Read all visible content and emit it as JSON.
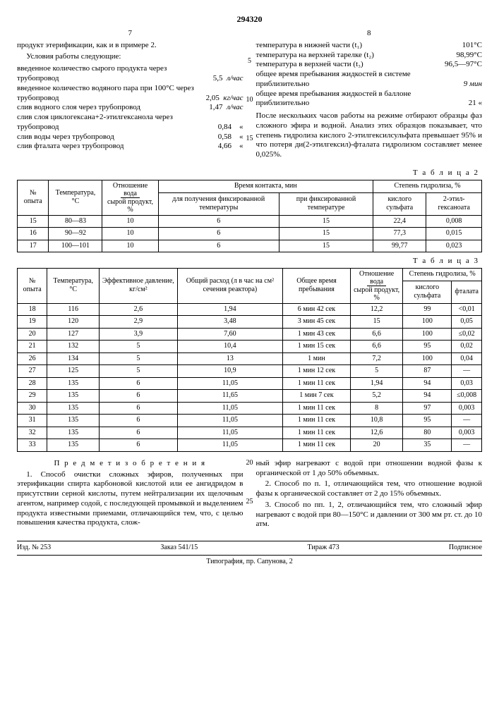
{
  "patent_number": "294320",
  "page_left_num": "7",
  "page_right_num": "8",
  "left_col": {
    "intro1": "продукт этерификации, как и в примере 2.",
    "intro2": "Условия работы следующие:",
    "kv": [
      {
        "k": "введенное количество сырого продукта через трубопровод",
        "v": "5,5",
        "u": "л/час"
      },
      {
        "k": "введенное количество водяного пара при 100°C через трубопровод",
        "v": "2,05",
        "u": "кг/час"
      },
      {
        "k": "слив водного слоя через трубопровод",
        "v": "1,47",
        "u": "л/час"
      },
      {
        "k": "слив слоя циклогексана+2-этилгексанола через трубопровод",
        "v": "0,84",
        "u": "«"
      },
      {
        "k": "слив воды через трубопровод",
        "v": "0,58",
        "u": "«"
      },
      {
        "k": "слив фталата через трубопровод",
        "v": "4,66",
        "u": "«"
      }
    ]
  },
  "right_col": {
    "kv": [
      {
        "k": "температура в нижней части (t₁)",
        "v": "101°C"
      },
      {
        "k": "температура на верхней тарелке (t₂)",
        "v": "98,99°C"
      },
      {
        "k": "температура в верхней части (t₃)",
        "v": "96,5—97°C"
      },
      {
        "k": "общее время пребывания жидкостей в системе приблизительно",
        "v": "9 мин"
      },
      {
        "k": "общее время пребывания жидкостей в баллоне приблизительно",
        "v": "21  «"
      }
    ],
    "tail": "После нескольких часов работы на режиме отбирают образцы фаз сложного эфира и водной. Анализ этих образцов показывает, что степень гидролиза кислого 2-этилгексилсульфата превышает 95% и что потеря ди(2-этилгексил)-фталата гидролизом составляет менее 0,025%."
  },
  "line_nums": [
    "5",
    "10",
    "15"
  ],
  "table2": {
    "title": "Т а б л и ц а  2",
    "head": {
      "c1": "№ опыта",
      "c2": "Температура, °C",
      "c3_top": "Отношение",
      "c3_num": "вода",
      "c3_den": "сырой продукт, %",
      "c4_group": "Время контакта, мин",
      "c4a": "для получения фиксированной температуры",
      "c4b": "при фиксированной температуре",
      "c5_group": "Степень гидролиза, %",
      "c5a": "кислого сульфата",
      "c5b": "2-этил-гексаноата"
    },
    "rows": [
      [
        "15",
        "80—83",
        "10",
        "6",
        "15",
        "22,4",
        "0,008"
      ],
      [
        "16",
        "90—92",
        "10",
        "6",
        "15",
        "77,3",
        "0,015"
      ],
      [
        "17",
        "100—101",
        "10",
        "6",
        "15",
        "99,77",
        "0,023"
      ]
    ]
  },
  "table3": {
    "title": "Т а б л и ц а  3",
    "head": {
      "c1": "№ опыта",
      "c2": "Температура, °C",
      "c3": "Эффективное давление, кг/см²",
      "c4": "Общий расход (л в час на см² сечения реактора)",
      "c5": "Общее время пребывания",
      "c6_top": "Отношение",
      "c6_num": "вода",
      "c6_den": "сырой продукт, %",
      "c7_group": "Степень гидролиза, %",
      "c7a": "кислого сульфата",
      "c7b": "фталата"
    },
    "rows": [
      [
        "18",
        "116",
        "2,6",
        "1,94",
        "6 мин 42 сек",
        "12,2",
        "99",
        "<0,01"
      ],
      [
        "19",
        "120",
        "2,9",
        "3,48",
        "3 мин 45 сек",
        "15",
        "100",
        "0,05"
      ],
      [
        "20",
        "127",
        "3,9",
        "7,60",
        "1 мин 43 сек",
        "6,6",
        "100",
        "≤0,02"
      ],
      [
        "21",
        "132",
        "5",
        "10,4",
        "1 мин 15 сек",
        "6,6",
        "95",
        "0,02"
      ],
      [
        "26",
        "134",
        "5",
        "13",
        "1 мин",
        "7,2",
        "100",
        "0,04"
      ],
      [
        "27",
        "125",
        "5",
        "10,9",
        "1 мин 12 сек",
        "5",
        "87",
        "—"
      ],
      [
        "28",
        "135",
        "6",
        "11,05",
        "1 мин 11 сек",
        "1,94",
        "94",
        "0,03"
      ],
      [
        "29",
        "135",
        "6",
        "11,65",
        "1 мин 7 сек",
        "5,2",
        "94",
        "≤0,008"
      ],
      [
        "30",
        "135",
        "6",
        "11,05",
        "1 мин 11 сек",
        "8",
        "97",
        "0,003"
      ],
      [
        "31",
        "135",
        "6",
        "11,05",
        "1 мин 11 сек",
        "10,8",
        "95",
        "—"
      ],
      [
        "32",
        "135",
        "6",
        "11,05",
        "1 мин 11 сек",
        "12,6",
        "80",
        "0,003"
      ],
      [
        "33",
        "135",
        "6",
        "11,05",
        "1 мин 11 сек",
        "20",
        "35",
        "—"
      ]
    ]
  },
  "claims": {
    "title": "П р е д м е т  и з о б р е т е н и я",
    "nums": [
      "20",
      "25"
    ],
    "c1a": "1. Способ очистки сложных эфиров, полученных при этерификации спирта карбоновой кислотой или ее ангидридом в присутствии серной кислоты, путем нейтрализации их щелочным агентом, например содой, с последующей промывкой и выделением продукта известными приемами, отличающийся тем, что, с целью повышения качества продукта, слож-",
    "c1b": "ный эфир нагревают с водой при отношении водной фазы к органической от 1 до 50% объемных.",
    "c2": "2. Способ по п. 1, отличающийся тем, что отношение водной фазы к органической составляет от 2 до 15% объемных.",
    "c3": "3. Способ по пп. 1, 2, отличающийся тем, что сложный эфир нагревают с водой при 80—150°C и давлении от 300 мм рт. ст. до 10 атм."
  },
  "footer": {
    "a": "Изд. № 253",
    "b": "Заказ 541/15",
    "c": "Тираж 473",
    "d": "Подписное",
    "typ": "Типография, пр. Сапунова, 2"
  }
}
